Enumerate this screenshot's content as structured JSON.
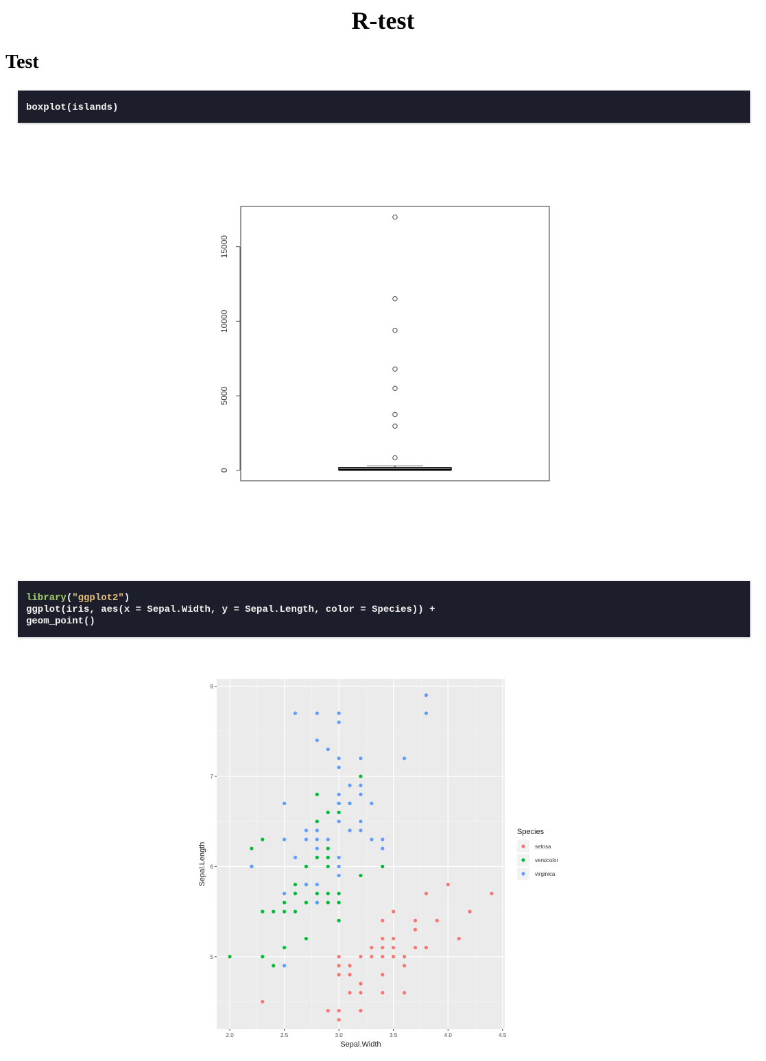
{
  "page": {
    "title": "R-test",
    "section_heading": "Test"
  },
  "code_blocks": {
    "block1": {
      "line1": "boxplot(islands)"
    },
    "block2": {
      "line1_fn": "library",
      "line1_open": "(",
      "line1_str": "\"ggplot2\"",
      "line1_close": ")",
      "line2": "ggplot(iris, aes(x = Sepal.Width, y = Sepal.Length, color = Species)) +",
      "line3": "geom_point()"
    }
  },
  "chart_data": [
    {
      "type": "boxplot",
      "title": "",
      "xlabel": "",
      "ylabel": "",
      "ylim": [
        -700,
        17700
      ],
      "yticks": [
        "0",
        "5000",
        "10000",
        "15000"
      ],
      "box": {
        "min": 13,
        "q1": 20,
        "median": 41,
        "q3": 183,
        "whisker_high": 306
      },
      "outliers": [
        840,
        2968,
        3745,
        5500,
        6795,
        9390,
        11506,
        16988
      ],
      "colors": {
        "axis": "#555555",
        "box": "#000000",
        "outlier": "#555555"
      }
    },
    {
      "type": "scatter",
      "title": "",
      "xlabel": "Sepal.Width",
      "ylabel": "Sepal.Length",
      "xlim": [
        1.88,
        4.52
      ],
      "ylim": [
        4.2,
        8.08
      ],
      "xticks": [
        "2.0",
        "2.5",
        "3.0",
        "3.5",
        "4.0",
        "4.5"
      ],
      "yticks": [
        "5",
        "6",
        "7",
        "8"
      ],
      "legend": {
        "title": "Species",
        "position": "right"
      },
      "series": [
        {
          "name": "setosa",
          "color": "#f8766d",
          "points": [
            [
              2.3,
              4.5
            ],
            [
              2.9,
              4.4
            ],
            [
              3.0,
              4.3
            ],
            [
              3.0,
              4.4
            ],
            [
              3.2,
              4.4
            ],
            [
              3.0,
              4.8
            ],
            [
              3.0,
              4.9
            ],
            [
              3.0,
              5.0
            ],
            [
              3.1,
              4.8
            ],
            [
              3.1,
              4.9
            ],
            [
              3.1,
              4.6
            ],
            [
              3.2,
              4.6
            ],
            [
              3.2,
              4.7
            ],
            [
              3.2,
              5.0
            ],
            [
              3.3,
              5.0
            ],
            [
              3.3,
              5.1
            ],
            [
              3.4,
              4.6
            ],
            [
              3.4,
              4.8
            ],
            [
              3.4,
              5.0
            ],
            [
              3.4,
              5.1
            ],
            [
              3.4,
              5.2
            ],
            [
              3.4,
              5.4
            ],
            [
              3.5,
              5.0
            ],
            [
              3.5,
              5.1
            ],
            [
              3.5,
              5.2
            ],
            [
              3.5,
              5.5
            ],
            [
              3.6,
              4.6
            ],
            [
              3.6,
              4.9
            ],
            [
              3.6,
              5.0
            ],
            [
              3.7,
              5.1
            ],
            [
              3.7,
              5.3
            ],
            [
              3.7,
              5.4
            ],
            [
              3.8,
              5.1
            ],
            [
              3.8,
              5.7
            ],
            [
              3.9,
              5.4
            ],
            [
              4.0,
              5.8
            ],
            [
              4.1,
              5.2
            ],
            [
              4.2,
              5.5
            ],
            [
              4.4,
              5.7
            ]
          ]
        },
        {
          "name": "versicolor",
          "color": "#00ba38",
          "points": [
            [
              2.0,
              5.0
            ],
            [
              2.2,
              6.2
            ],
            [
              2.2,
              6.0
            ],
            [
              2.3,
              5.0
            ],
            [
              2.3,
              5.5
            ],
            [
              2.3,
              6.3
            ],
            [
              2.4,
              4.9
            ],
            [
              2.4,
              5.5
            ],
            [
              2.5,
              5.1
            ],
            [
              2.5,
              5.5
            ],
            [
              2.5,
              5.6
            ],
            [
              2.6,
              5.5
            ],
            [
              2.6,
              5.7
            ],
            [
              2.6,
              5.8
            ],
            [
              2.7,
              5.2
            ],
            [
              2.7,
              5.6
            ],
            [
              2.7,
              5.8
            ],
            [
              2.7,
              6.0
            ],
            [
              2.8,
              5.6
            ],
            [
              2.8,
              5.7
            ],
            [
              2.8,
              6.1
            ],
            [
              2.8,
              6.5
            ],
            [
              2.8,
              6.8
            ],
            [
              2.9,
              5.6
            ],
            [
              2.9,
              5.7
            ],
            [
              2.9,
              6.0
            ],
            [
              2.9,
              6.1
            ],
            [
              2.9,
              6.2
            ],
            [
              2.9,
              6.6
            ],
            [
              3.0,
              5.4
            ],
            [
              3.0,
              5.6
            ],
            [
              3.0,
              5.7
            ],
            [
              3.0,
              6.6
            ],
            [
              3.0,
              6.7
            ],
            [
              3.1,
              6.7
            ],
            [
              3.2,
              5.9
            ],
            [
              3.2,
              7.0
            ],
            [
              3.4,
              6.0
            ]
          ]
        },
        {
          "name": "virginica",
          "color": "#619cff",
          "points": [
            [
              2.2,
              6.0
            ],
            [
              2.5,
              4.9
            ],
            [
              2.5,
              5.7
            ],
            [
              2.5,
              6.3
            ],
            [
              2.5,
              6.7
            ],
            [
              2.6,
              6.1
            ],
            [
              2.6,
              7.7
            ],
            [
              2.7,
              5.8
            ],
            [
              2.7,
              6.3
            ],
            [
              2.7,
              6.4
            ],
            [
              2.8,
              5.6
            ],
            [
              2.8,
              5.8
            ],
            [
              2.8,
              6.2
            ],
            [
              2.8,
              6.3
            ],
            [
              2.8,
              6.4
            ],
            [
              2.8,
              7.4
            ],
            [
              2.8,
              7.7
            ],
            [
              2.9,
              6.3
            ],
            [
              2.9,
              7.3
            ],
            [
              3.0,
              5.9
            ],
            [
              3.0,
              6.0
            ],
            [
              3.0,
              6.1
            ],
            [
              3.0,
              6.5
            ],
            [
              3.0,
              6.7
            ],
            [
              3.0,
              6.8
            ],
            [
              3.0,
              7.1
            ],
            [
              3.0,
              7.2
            ],
            [
              3.0,
              7.6
            ],
            [
              3.0,
              7.7
            ],
            [
              3.1,
              6.4
            ],
            [
              3.1,
              6.7
            ],
            [
              3.1,
              6.9
            ],
            [
              3.2,
              6.4
            ],
            [
              3.2,
              6.5
            ],
            [
              3.2,
              6.8
            ],
            [
              3.2,
              6.9
            ],
            [
              3.2,
              7.2
            ],
            [
              3.3,
              6.3
            ],
            [
              3.3,
              6.7
            ],
            [
              3.4,
              6.2
            ],
            [
              3.4,
              6.3
            ],
            [
              3.6,
              7.2
            ],
            [
              3.8,
              7.7
            ],
            [
              3.8,
              7.9
            ]
          ]
        }
      ]
    }
  ]
}
